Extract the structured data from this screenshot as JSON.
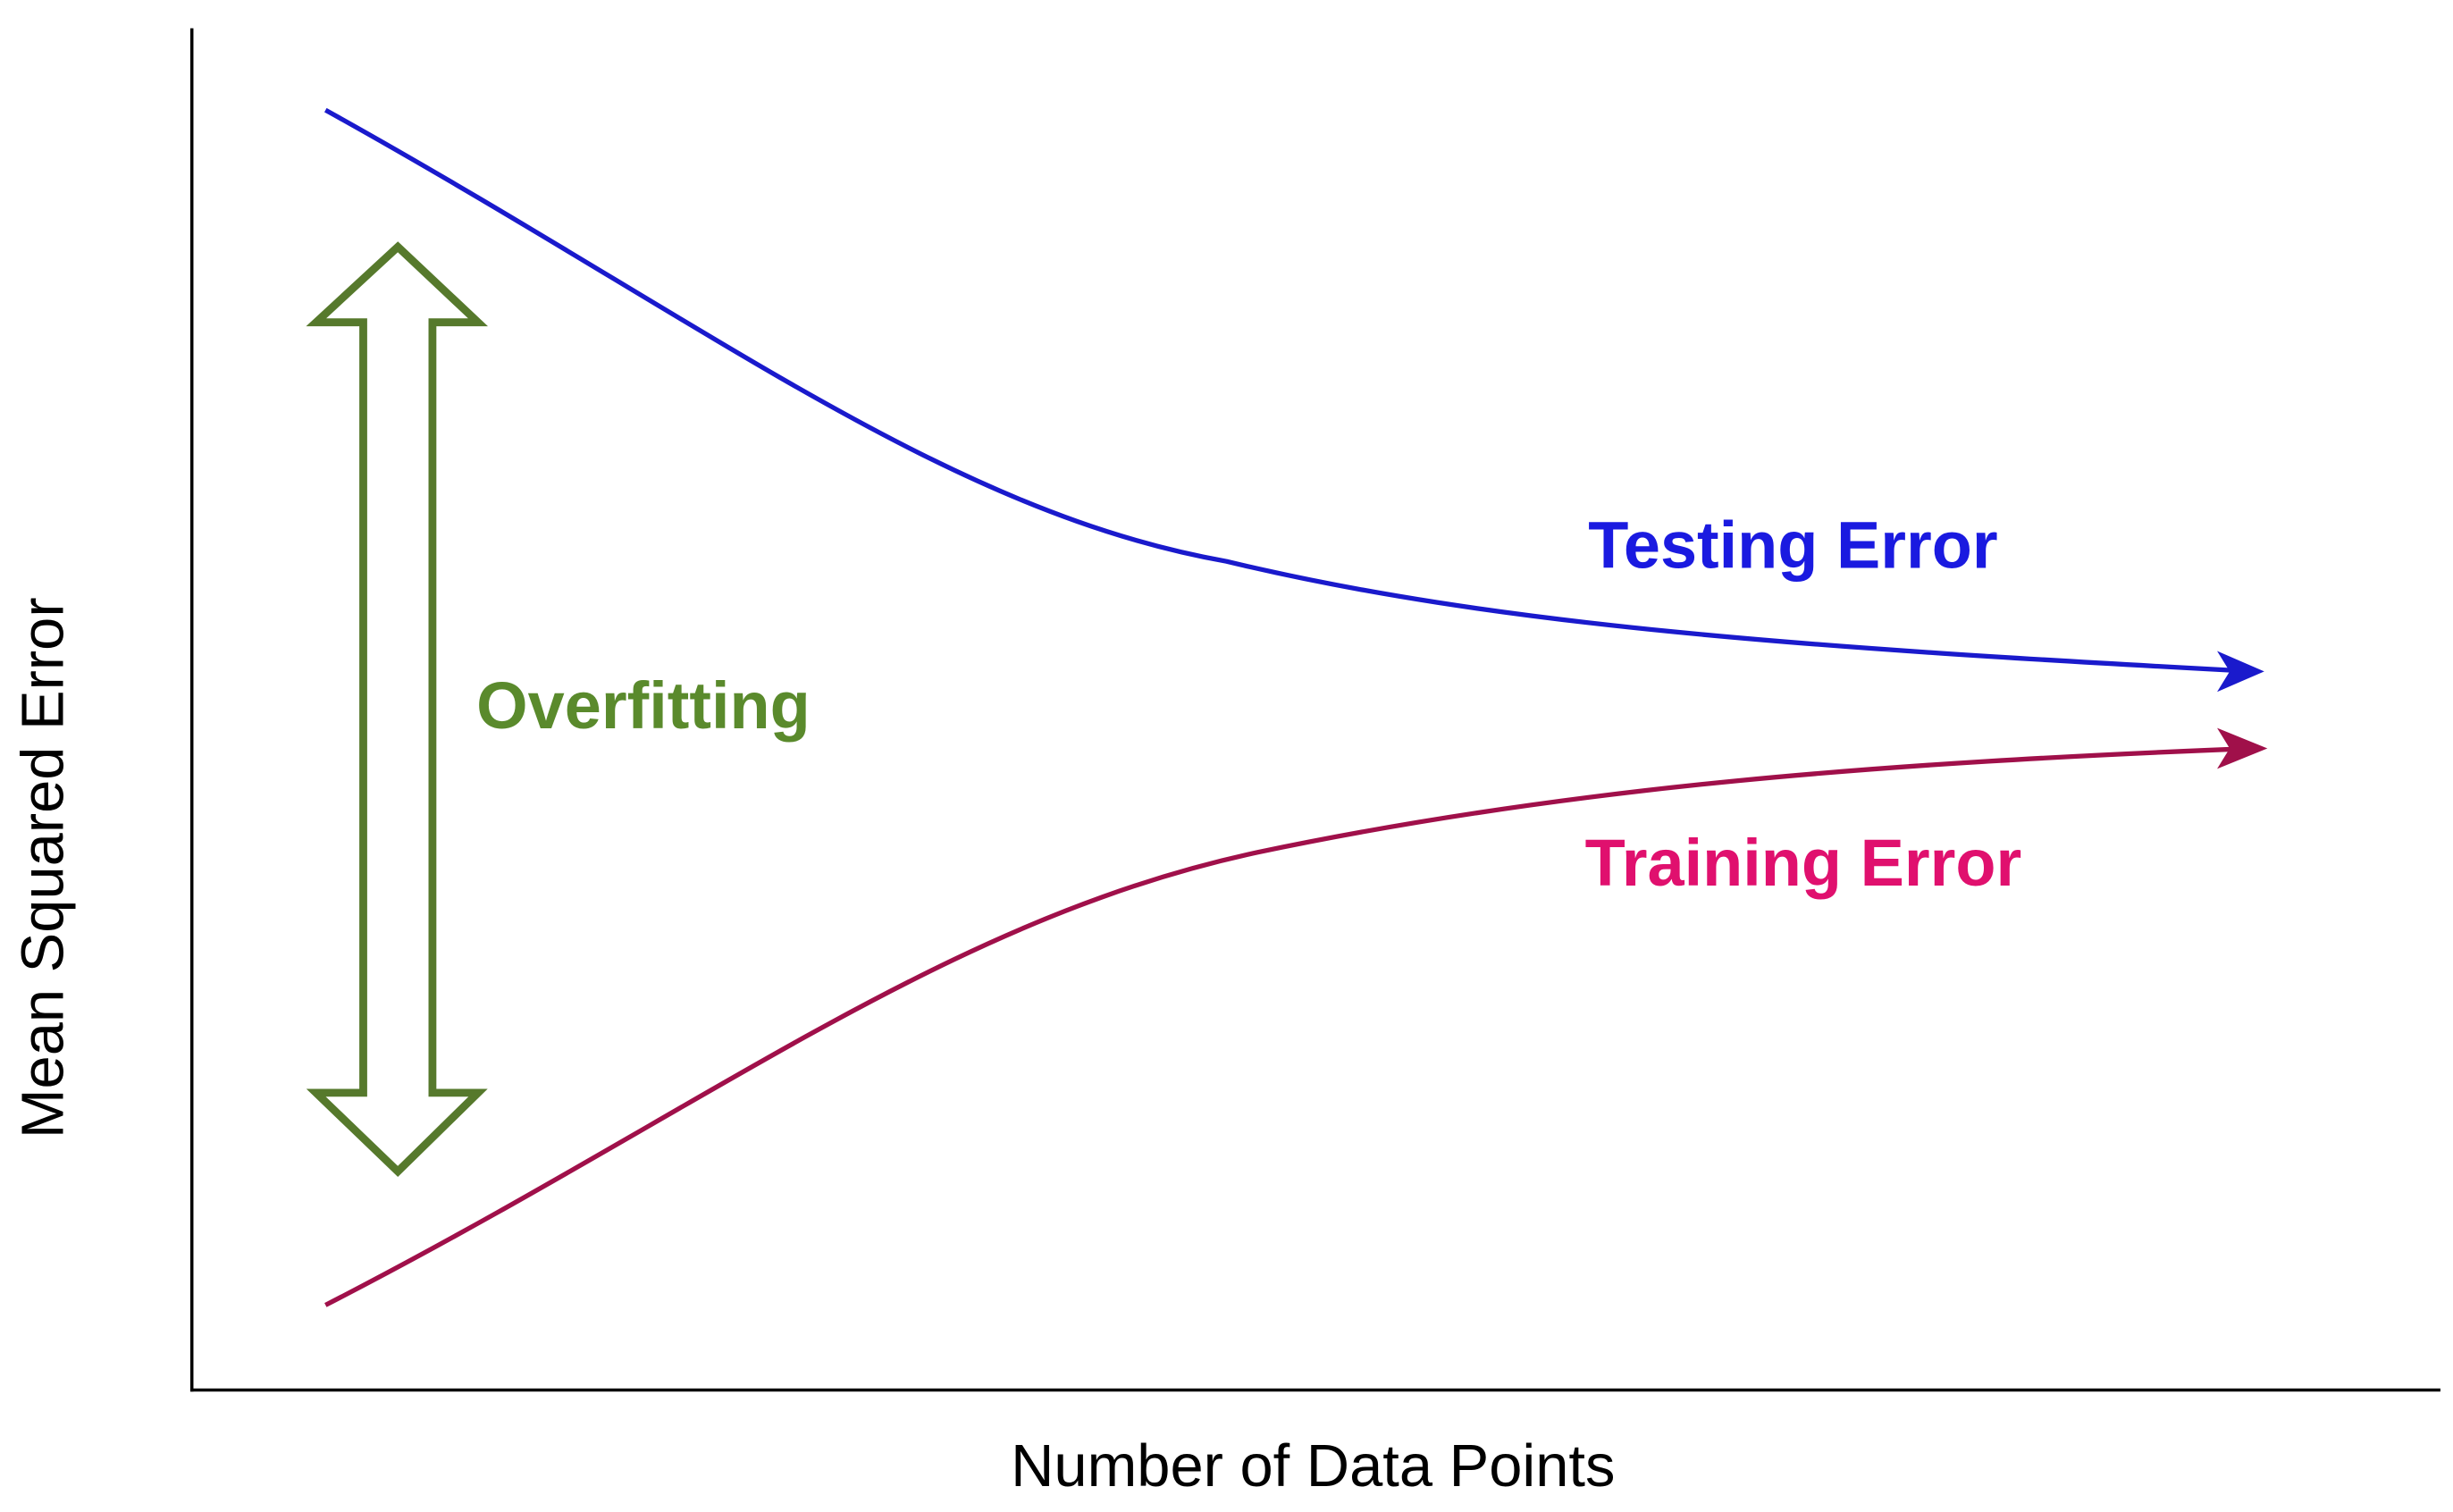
{
  "axis_labels": {
    "x": "Number of Data Points",
    "y": "Mean Squared Error"
  },
  "curves": [
    {
      "label": "Testing Error"
    },
    {
      "label": "Training Error"
    }
  ],
  "annotation": "Overfitting"
}
